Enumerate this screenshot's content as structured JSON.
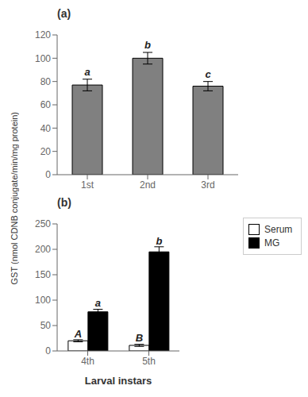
{
  "chart_data": [
    {
      "type": "bar",
      "title": "(a)",
      "y_label": "GST (nmol CDNB conjugate/min/mg protein)",
      "categories": [
        "1st",
        "2nd",
        "3rd"
      ],
      "values": [
        77,
        100,
        76
      ],
      "errors": [
        5,
        5,
        4
      ],
      "annotations": [
        "a",
        "b",
        "c"
      ],
      "color": "#808080",
      "ylim": [
        0,
        120
      ],
      "yticks": [
        0,
        20,
        40,
        60,
        80,
        100,
        120
      ]
    },
    {
      "type": "bar",
      "title": "(b)",
      "x_label": "Larval instars",
      "categories": [
        "4th",
        "5th"
      ],
      "series": [
        {
          "name": "Serum",
          "color": "#ffffff",
          "values": [
            20,
            11
          ],
          "errors": [
            2,
            2
          ],
          "annotations": [
            "A",
            "B"
          ]
        },
        {
          "name": "MG",
          "color": "#000000",
          "values": [
            77,
            195
          ],
          "errors": [
            5,
            10
          ],
          "annotations": [
            "a",
            "b"
          ]
        }
      ],
      "ylim": [
        0,
        250
      ],
      "yticks": [
        0,
        50,
        100,
        150,
        200,
        250
      ],
      "legend": "right"
    }
  ]
}
